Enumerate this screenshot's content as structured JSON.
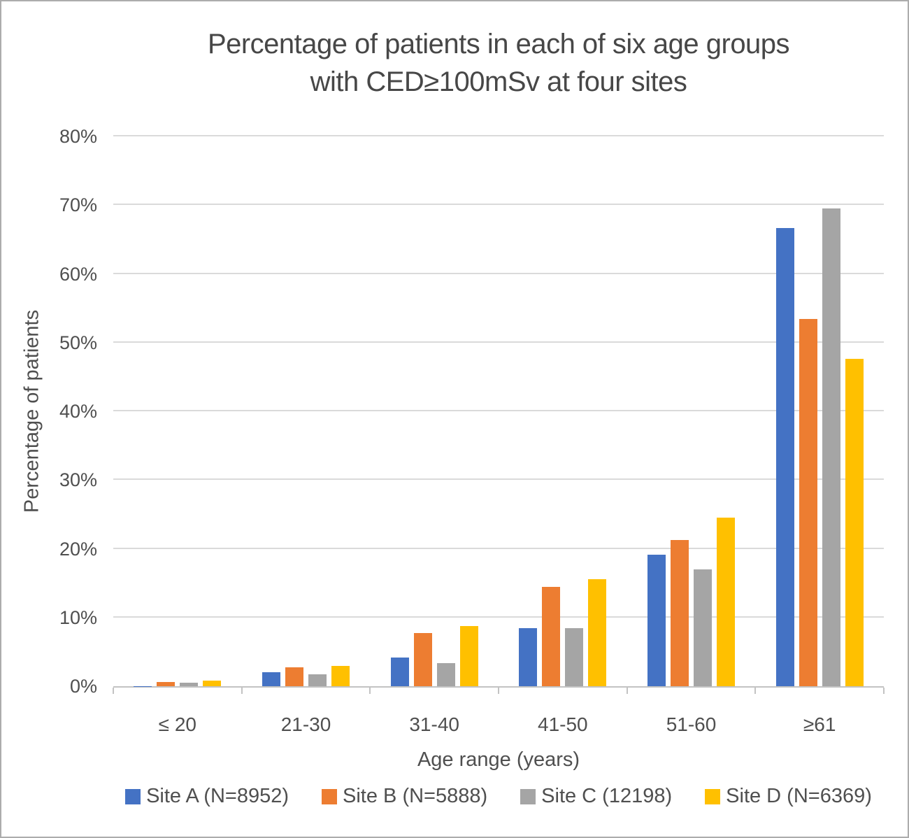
{
  "figure": {
    "title_lines": [
      "Percentage of patients in each of six age groups",
      "with CED≥100mSv at four sites"
    ]
  },
  "chart_data": {
    "type": "bar",
    "title": "Percentage of patients in each of six age groups with CED≥100mSv at four sites",
    "xlabel": "Age range (years)",
    "ylabel": "Percentage of patients",
    "categories": [
      "≤ 20",
      "21-30",
      "31-40",
      "41-50",
      "51-60",
      "≥61"
    ],
    "series": [
      {
        "name": "Site A (N=8952)",
        "color": "#4472C4",
        "values": [
          0.05,
          2.0,
          4.2,
          8.4,
          19.1,
          66.7
        ]
      },
      {
        "name": "Site B (N=5888)",
        "color": "#ED7D31",
        "values": [
          0.6,
          2.7,
          7.7,
          14.5,
          21.3,
          53.4
        ]
      },
      {
        "name": "Site C (12198)",
        "color": "#A5A5A5",
        "values": [
          0.55,
          1.7,
          3.4,
          8.4,
          17.0,
          69.5
        ]
      },
      {
        "name": "Site D (N=6369)",
        "color": "#FFC000",
        "values": [
          0.85,
          3.0,
          8.8,
          15.6,
          24.5,
          47.6
        ]
      }
    ],
    "ylim": [
      0,
      80
    ],
    "yticks": [
      {
        "value": 0,
        "label": "0%"
      },
      {
        "value": 10,
        "label": "10%"
      },
      {
        "value": 20,
        "label": "20%"
      },
      {
        "value": 30,
        "label": "30%"
      },
      {
        "value": 40,
        "label": "40%"
      },
      {
        "value": 50,
        "label": "50%"
      },
      {
        "value": 60,
        "label": "60%"
      },
      {
        "value": 70,
        "label": "70%"
      },
      {
        "value": 80,
        "label": "80%"
      }
    ],
    "grid": "horizontal",
    "legend_position": "bottom"
  }
}
